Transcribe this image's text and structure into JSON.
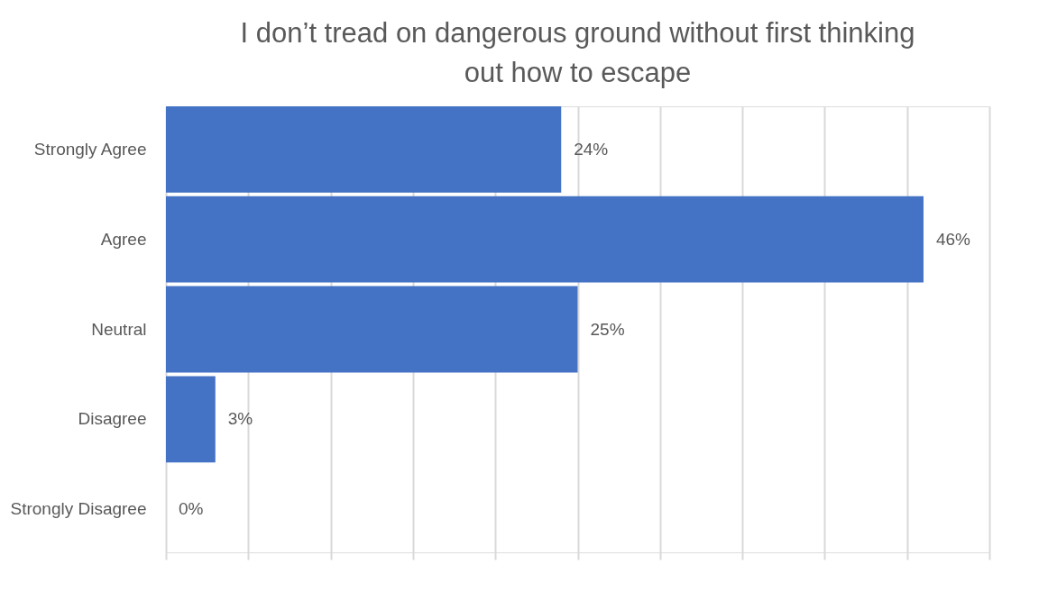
{
  "chart_data": {
    "type": "bar",
    "orientation": "horizontal",
    "title": "I don’t tread on dangerous ground without first thinking out how to escape",
    "categories": [
      "Strongly Agree",
      "Agree",
      "Neutral",
      "Disagree",
      "Strongly Disagree"
    ],
    "values": [
      24,
      46,
      25,
      3,
      0
    ],
    "value_labels": [
      "24%",
      "46%",
      "25%",
      "3%",
      "0%"
    ],
    "color": "#4472c4",
    "xlim": [
      0,
      50
    ],
    "xticks": [
      {
        "value": 0,
        "label": null
      },
      {
        "value": 5,
        "label": null
      },
      {
        "value": 10,
        "label": null
      },
      {
        "value": 15,
        "label": null
      },
      {
        "value": 20,
        "label": null
      },
      {
        "value": 25,
        "label": null
      },
      {
        "value": 30,
        "label": null
      },
      {
        "value": 35,
        "label": null
      },
      {
        "value": 40,
        "label": null
      },
      {
        "value": 45,
        "label": null
      },
      {
        "value": 50,
        "label": null
      }
    ],
    "grid": "x",
    "tick_labels": "y"
  }
}
